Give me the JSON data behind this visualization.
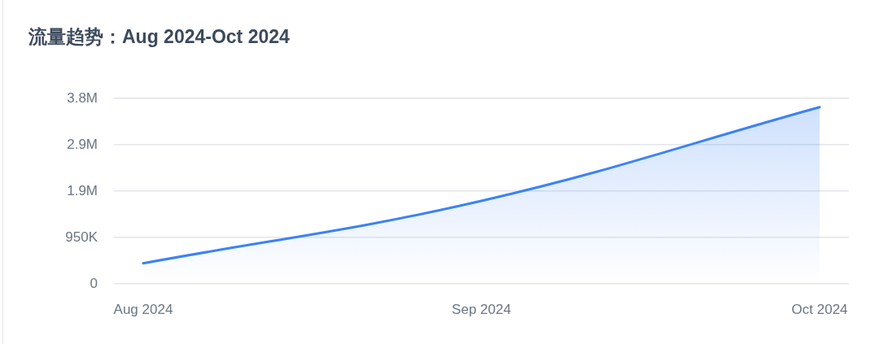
{
  "chart_data": {
    "type": "area",
    "title": "流量趋势：Aug 2024-Oct 2024",
    "categories": [
      "Aug 2024",
      "Sep 2024",
      "Oct 2024"
    ],
    "values": [
      420000,
      1700000,
      3620000
    ],
    "color": "#3b82f6",
    "ylim": [
      0,
      3800000
    ],
    "yticks": [
      0,
      {
        "value": 950000,
        "label": "950K"
      },
      {
        "value": 1900000,
        "label": "1.9M"
      },
      {
        "value": 2850000,
        "label": "2.9M"
      },
      {
        "value": 3800000,
        "label": "3.8M"
      }
    ],
    "grid": "y",
    "legend": false,
    "marker": "none"
  }
}
